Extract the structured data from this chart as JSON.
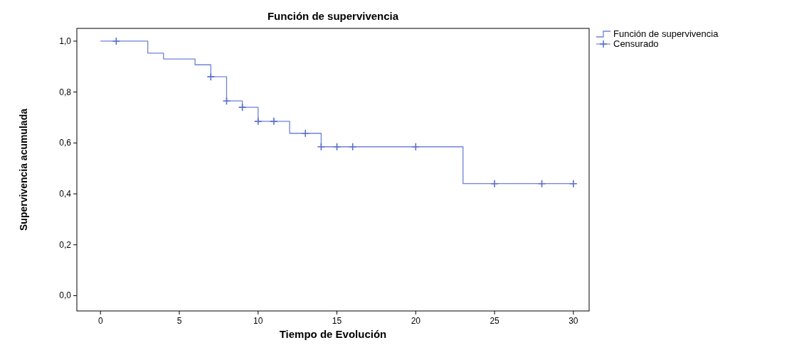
{
  "chart_data": {
    "type": "step",
    "title": "Función de supervivencia",
    "xlabel": "Tiempo de Evolución",
    "ylabel": "Supervivencia acumulada",
    "xlim": [
      -1.5,
      31
    ],
    "xticks": [
      0,
      5,
      10,
      15,
      20,
      25,
      30
    ],
    "ylim": [
      -0.06,
      1.05
    ],
    "yticks": [
      {
        "value": 0,
        "label": "0,0"
      },
      {
        "value": 0.2,
        "label": "0,2"
      },
      {
        "value": 0.4,
        "label": "0,4"
      },
      {
        "value": 0.6,
        "label": "0,6"
      },
      {
        "value": 0.8,
        "label": "0,8"
      },
      {
        "value": 1,
        "label": "1,0"
      }
    ],
    "grid": false,
    "legend": "top right",
    "series": [
      {
        "name": "Función de supervivencia",
        "color": "#6f82d6",
        "marker": "none",
        "x": [
          0,
          3,
          4,
          6,
          7,
          8,
          9,
          10,
          12,
          14,
          23,
          30
        ],
        "values": [
          1,
          0.953,
          0.93,
          0.907,
          0.86,
          0.765,
          0.74,
          0.685,
          0.638,
          0.585,
          0.44,
          0.44
        ]
      },
      {
        "name": "Censurado",
        "type": "scatter",
        "color": "#5a6fc8",
        "marker": "cross",
        "x": [
          1,
          7,
          8,
          9,
          10,
          11,
          13,
          14,
          15,
          16,
          20,
          25,
          28,
          30
        ],
        "values": [
          1,
          0.86,
          0.765,
          0.74,
          0.685,
          0.685,
          0.638,
          0.585,
          0.585,
          0.585,
          0.585,
          0.44,
          0.44,
          0.44
        ]
      }
    ]
  }
}
